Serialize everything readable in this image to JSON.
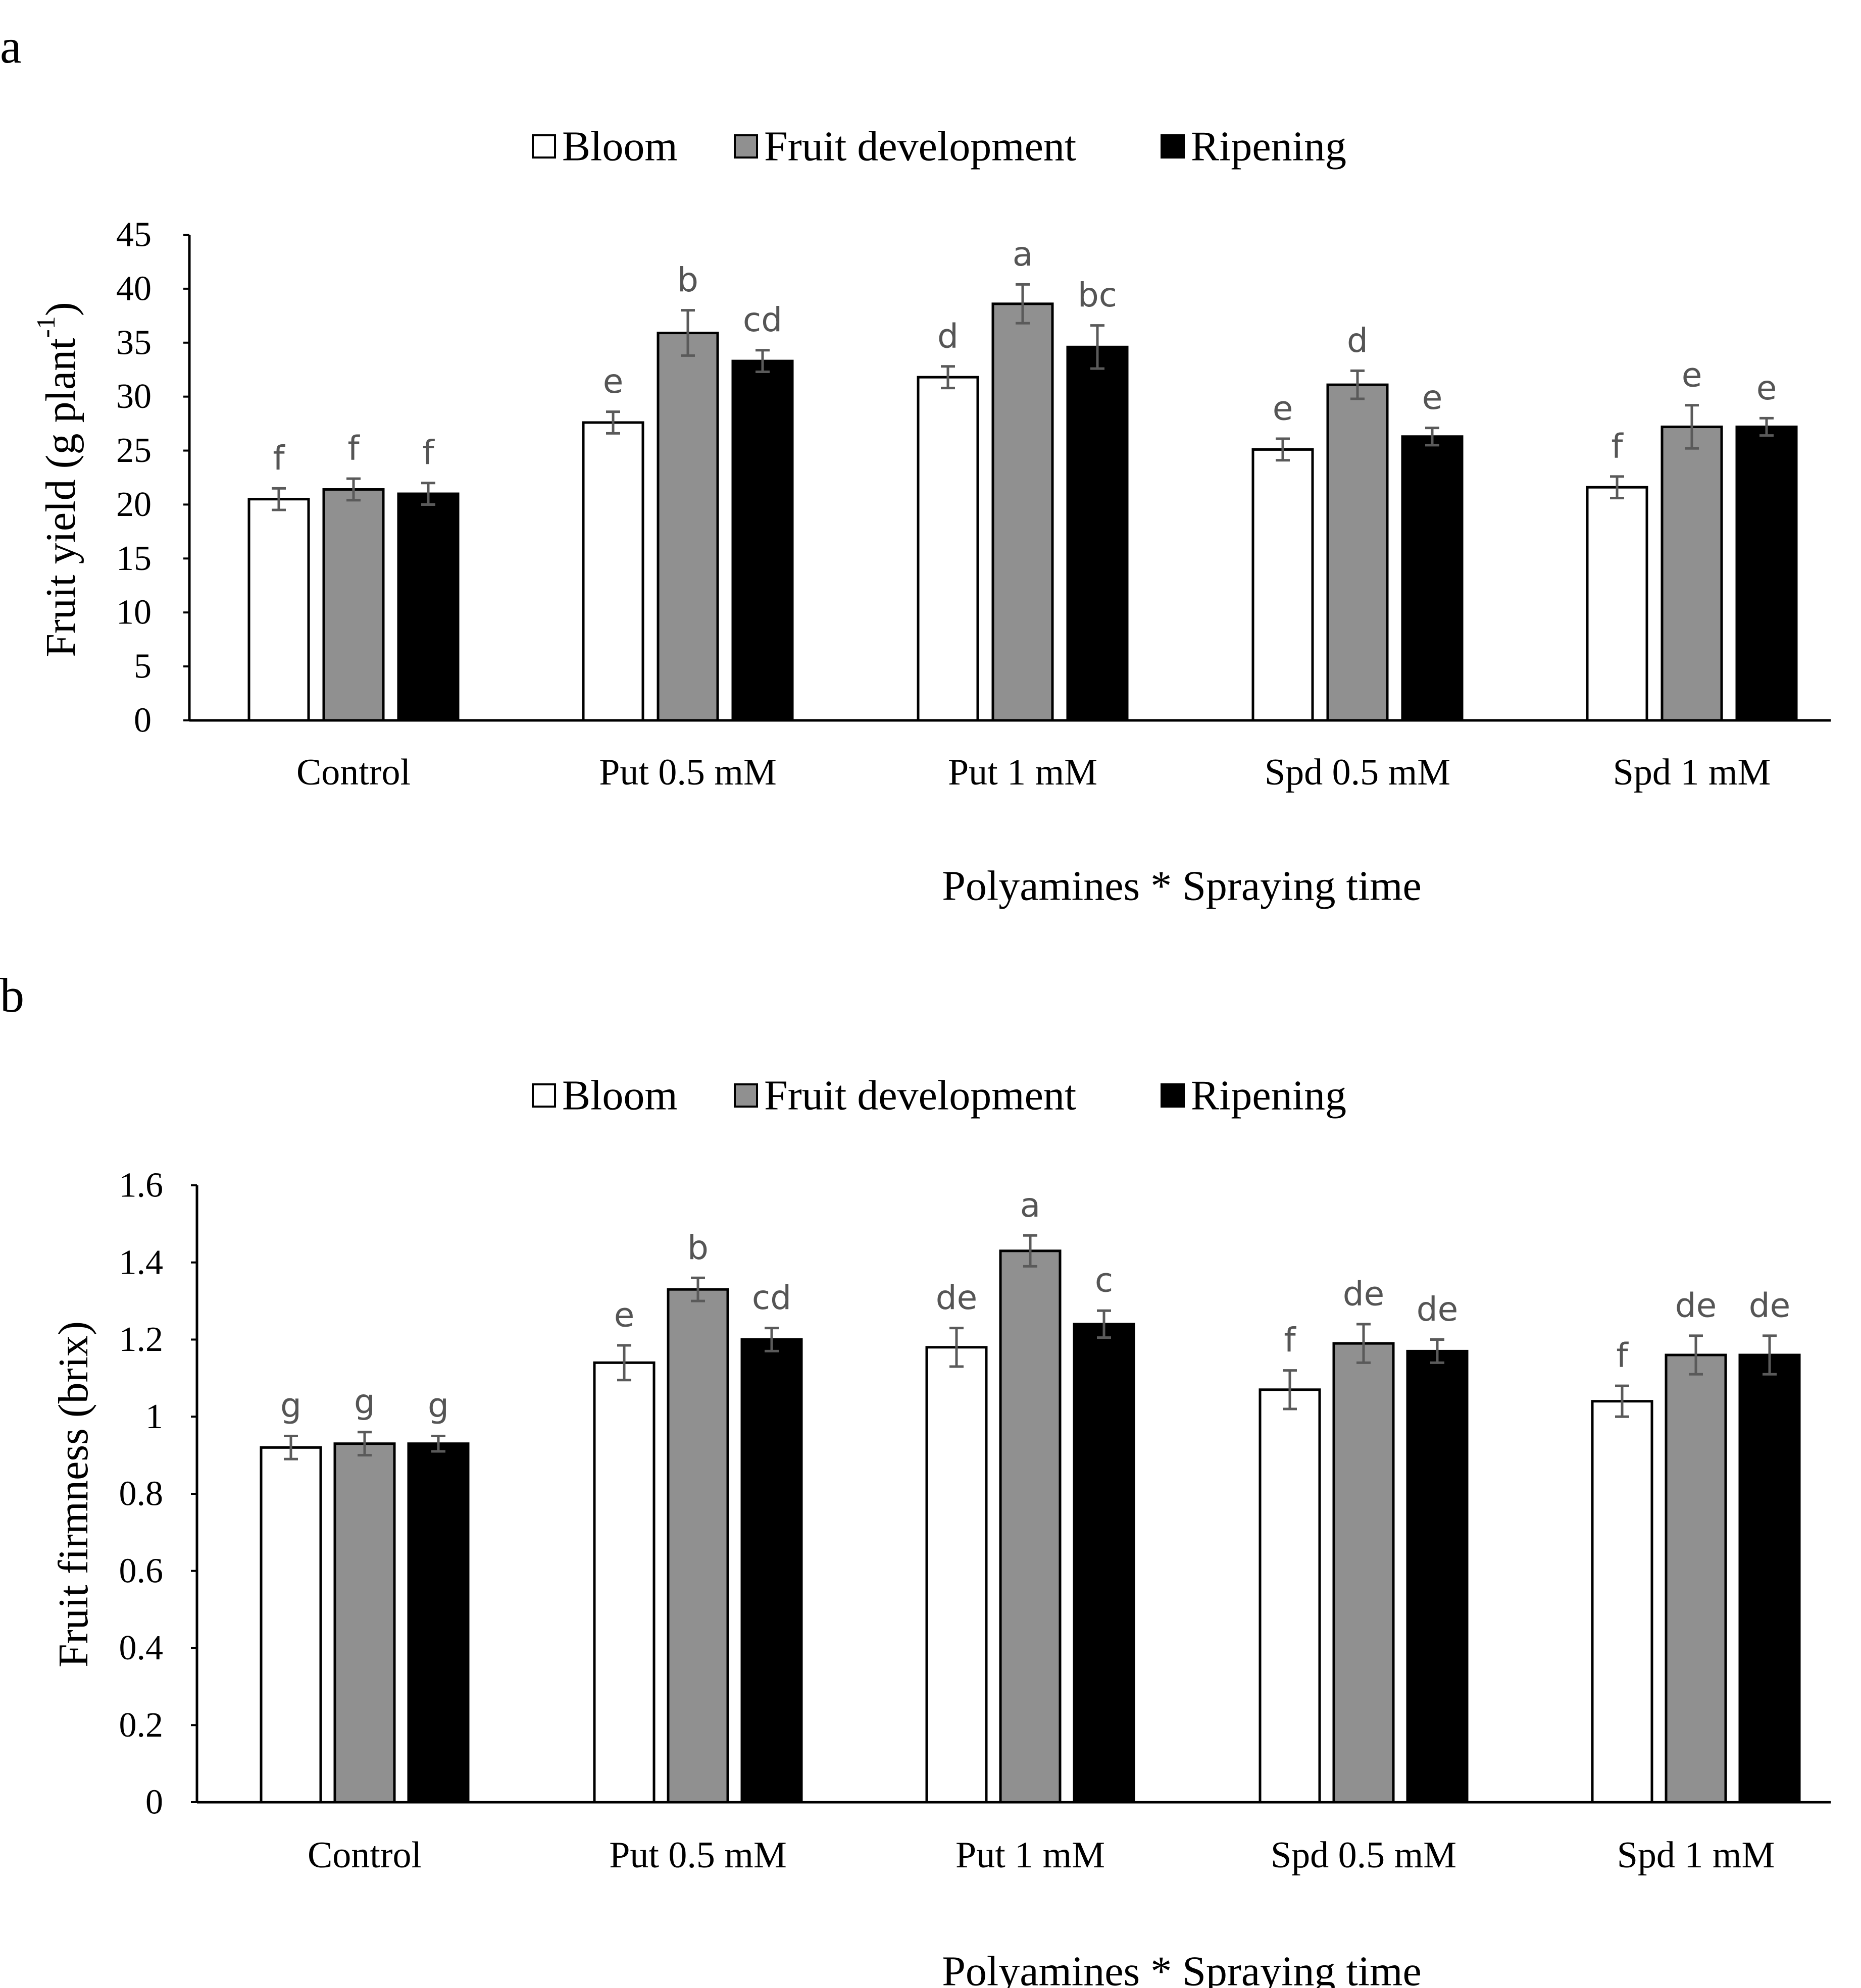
{
  "chart_data": [
    {
      "panel_label": "a",
      "type": "bar",
      "legend": {
        "position": "top-center",
        "entries": [
          {
            "name": "Bloom",
            "color": "#ffffff"
          },
          {
            "name": "Fruit development",
            "color": "#909090"
          },
          {
            "name": "Ripening",
            "color": "#000000"
          }
        ]
      },
      "categories": [
        "Control",
        "Put 0.5 mM",
        "Put 1 mM",
        "Spd 0.5 mM",
        "Spd 1 mM"
      ],
      "series": [
        {
          "name": "Bloom",
          "values": [
            20.5,
            27.6,
            31.8,
            25.1,
            21.6
          ],
          "errors": [
            1.0,
            1.0,
            1.0,
            1.0,
            1.0
          ],
          "labels": [
            "f",
            "e",
            "d",
            "e",
            "f"
          ]
        },
        {
          "name": "Fruit development",
          "values": [
            21.4,
            35.9,
            38.6,
            31.1,
            27.2
          ],
          "errors": [
            1.0,
            2.1,
            1.8,
            1.3,
            2.0
          ],
          "labels": [
            "f",
            "b",
            "a",
            "d",
            "e"
          ]
        },
        {
          "name": "Ripening",
          "values": [
            21.0,
            33.3,
            34.6,
            26.3,
            27.2
          ],
          "errors": [
            1.0,
            1.0,
            2.0,
            0.8,
            0.8
          ],
          "labels": [
            "f",
            "cd",
            "bc",
            "e",
            "e"
          ]
        }
      ],
      "ylabel": "Fruit yield (g plant",
      "ylabel_sup": "-1",
      "ylabel_close": ")",
      "xlabel": "Polyamines * Spraying time",
      "ylim": [
        0,
        45
      ],
      "yticks": [
        0,
        5,
        10,
        15,
        20,
        25,
        30,
        35,
        40,
        45
      ],
      "ytick_labels": [
        "0",
        "5",
        "10",
        "15",
        "20",
        "25",
        "30",
        "35",
        "40",
        "45"
      ],
      "grid": false
    },
    {
      "panel_label": "b",
      "type": "bar",
      "legend": {
        "position": "top-center",
        "entries": [
          {
            "name": "Bloom",
            "color": "#ffffff"
          },
          {
            "name": "Fruit development",
            "color": "#909090"
          },
          {
            "name": "Ripening",
            "color": "#000000"
          }
        ]
      },
      "categories": [
        "Control",
        "Put 0.5 mM",
        "Put 1 mM",
        "Spd 0.5 mM",
        "Spd 1 mM"
      ],
      "series": [
        {
          "name": "Bloom",
          "values": [
            0.92,
            1.14,
            1.18,
            1.07,
            1.04
          ],
          "errors": [
            0.03,
            0.045,
            0.05,
            0.05,
            0.04
          ],
          "labels": [
            "g",
            "e",
            "de",
            "f",
            "f"
          ]
        },
        {
          "name": "Fruit development",
          "values": [
            0.93,
            1.33,
            1.43,
            1.19,
            1.16
          ],
          "errors": [
            0.03,
            0.03,
            0.04,
            0.05,
            0.05
          ],
          "labels": [
            "g",
            "b",
            "a",
            "de",
            "de"
          ]
        },
        {
          "name": "Ripening",
          "values": [
            0.93,
            1.2,
            1.24,
            1.17,
            1.16
          ],
          "errors": [
            0.02,
            0.03,
            0.035,
            0.03,
            0.05
          ],
          "labels": [
            "g",
            "cd",
            "c",
            "de",
            "de"
          ]
        }
      ],
      "ylabel": "Fruit firmness (brix)",
      "ylabel_sup": "",
      "ylabel_close": "",
      "xlabel": "Polyamines * Spraying time",
      "ylim": [
        0,
        1.6
      ],
      "yticks": [
        0,
        0.2,
        0.4,
        0.6,
        0.8,
        1.0,
        1.2,
        1.4,
        1.6
      ],
      "ytick_labels": [
        "0",
        "0.2",
        "0.4",
        "0.6",
        "0.8",
        "1",
        "1.2",
        "1.4",
        "1.6"
      ],
      "grid": false
    }
  ]
}
